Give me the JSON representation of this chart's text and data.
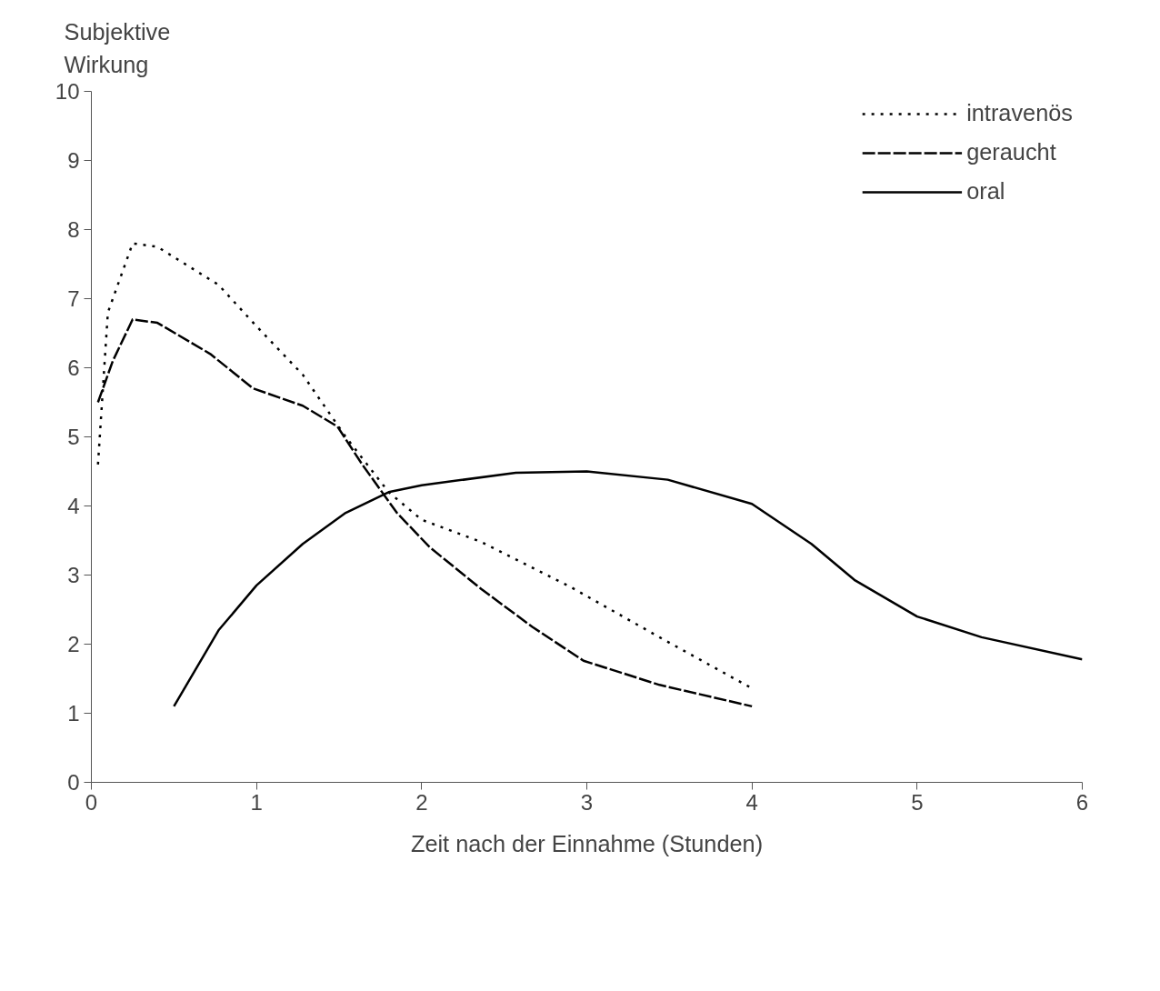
{
  "chart_data": {
    "type": "line",
    "xlabel": "Zeit nach der Einnahme (Stunden)",
    "ylabel": "Subjektive Wirkung",
    "xlim": [
      0,
      6
    ],
    "ylim": [
      0,
      10
    ],
    "xticks": [
      0,
      1,
      2,
      3,
      4,
      5,
      6
    ],
    "yticks": [
      0,
      1,
      2,
      3,
      4,
      5,
      6,
      7,
      8,
      9,
      10
    ],
    "grid": false,
    "legend": "top right",
    "marker": "none",
    "series": [
      {
        "name": "intravenös",
        "color": "#000000",
        "line_style": "dotted",
        "x": [
          0.04,
          0.1,
          0.25,
          0.4,
          0.77,
          1.0,
          1.28,
          1.54,
          1.8,
          2.0,
          2.36,
          2.9,
          3.44,
          4.0
        ],
        "values": [
          4.6,
          6.8,
          7.8,
          7.75,
          7.2,
          6.6,
          5.9,
          5.0,
          4.2,
          3.8,
          3.48,
          2.83,
          2.1,
          1.36
        ]
      },
      {
        "name": "geraucht",
        "color": "#000000",
        "line_style": "dashed",
        "x": [
          0.04,
          0.13,
          0.25,
          0.4,
          0.72,
          0.98,
          1.28,
          1.49,
          1.64,
          1.85,
          2.05,
          2.36,
          2.67,
          2.98,
          3.44,
          4.0
        ],
        "values": [
          5.5,
          6.1,
          6.7,
          6.65,
          6.2,
          5.7,
          5.45,
          5.15,
          4.6,
          3.9,
          3.4,
          2.8,
          2.25,
          1.76,
          1.41,
          1.1
        ]
      },
      {
        "name": "oral",
        "color": "#000000",
        "line_style": "solid",
        "x": [
          0.5,
          0.77,
          1.0,
          1.28,
          1.54,
          1.8,
          2.0,
          2.57,
          3.0,
          3.49,
          4.0,
          4.36,
          4.62,
          5.0,
          5.39,
          6.0
        ],
        "values": [
          1.1,
          2.2,
          2.85,
          3.45,
          3.9,
          4.2,
          4.3,
          4.48,
          4.5,
          4.38,
          4.03,
          3.45,
          2.93,
          2.4,
          2.1,
          1.78
        ]
      }
    ]
  }
}
